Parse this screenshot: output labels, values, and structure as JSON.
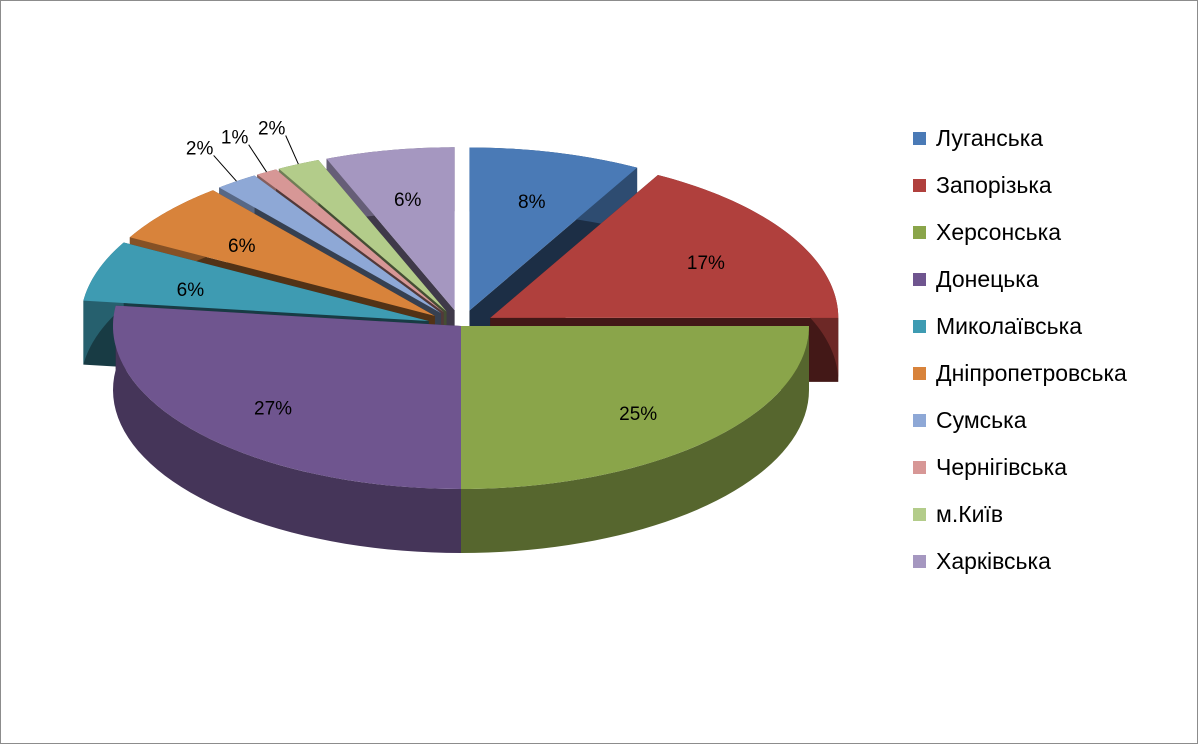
{
  "chart_data": {
    "type": "pie",
    "variant": "3d-exploded",
    "legend_position": "right",
    "categories": [
      "Луганська",
      "Запорізька",
      "Херсонська",
      "Донецька",
      "Миколаївська",
      "Дніпропетровська",
      "Сумська",
      "Чернігівська",
      "м.Київ",
      "Харківська"
    ],
    "values": [
      8,
      17,
      25,
      27,
      6,
      6,
      2,
      1,
      2,
      6
    ],
    "labels": [
      "8%",
      "17%",
      "25%",
      "27%",
      "6%",
      "6%",
      "2%",
      "1%",
      "2%",
      "6%"
    ],
    "colors": [
      "#4a7ab6",
      "#b0403d",
      "#8aa54a",
      "#6f558f",
      "#3e9bb2",
      "#d8833b",
      "#8ea8d6",
      "#d79796",
      "#b3cc8a",
      "#a597c0"
    ]
  }
}
